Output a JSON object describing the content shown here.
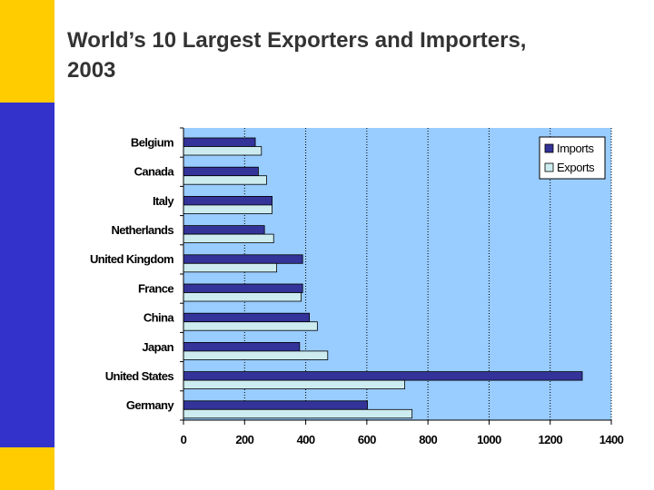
{
  "slide": {
    "title_line1": "World’s 10 Largest Exporters and Importers,",
    "title_line2": "2003",
    "accent_colors": {
      "yellow": "#FFCC00",
      "blue": "#3333CC"
    }
  },
  "chart_data": {
    "type": "bar",
    "orientation": "horizontal",
    "categories": [
      "Belgium",
      "Canada",
      "Italy",
      "Netherlands",
      "United Kingdom",
      "France",
      "China",
      "Japan",
      "United States",
      "Germany"
    ],
    "series": [
      {
        "name": "Imports",
        "color": "#333399",
        "values": [
          235,
          245,
          290,
          265,
          390,
          390,
          412,
          380,
          1305,
          602
        ]
      },
      {
        "name": "Exports",
        "color": "#CCECF0",
        "values": [
          255,
          272,
          290,
          295,
          305,
          385,
          438,
          472,
          724,
          748
        ]
      }
    ],
    "x_ticks": [
      0,
      200,
      400,
      600,
      800,
      1000,
      1200,
      1400
    ],
    "xlim": [
      0,
      1400
    ],
    "plot_background": "#99CCFF",
    "gridlines": "vertical dotted",
    "legend_position": "top-right"
  }
}
